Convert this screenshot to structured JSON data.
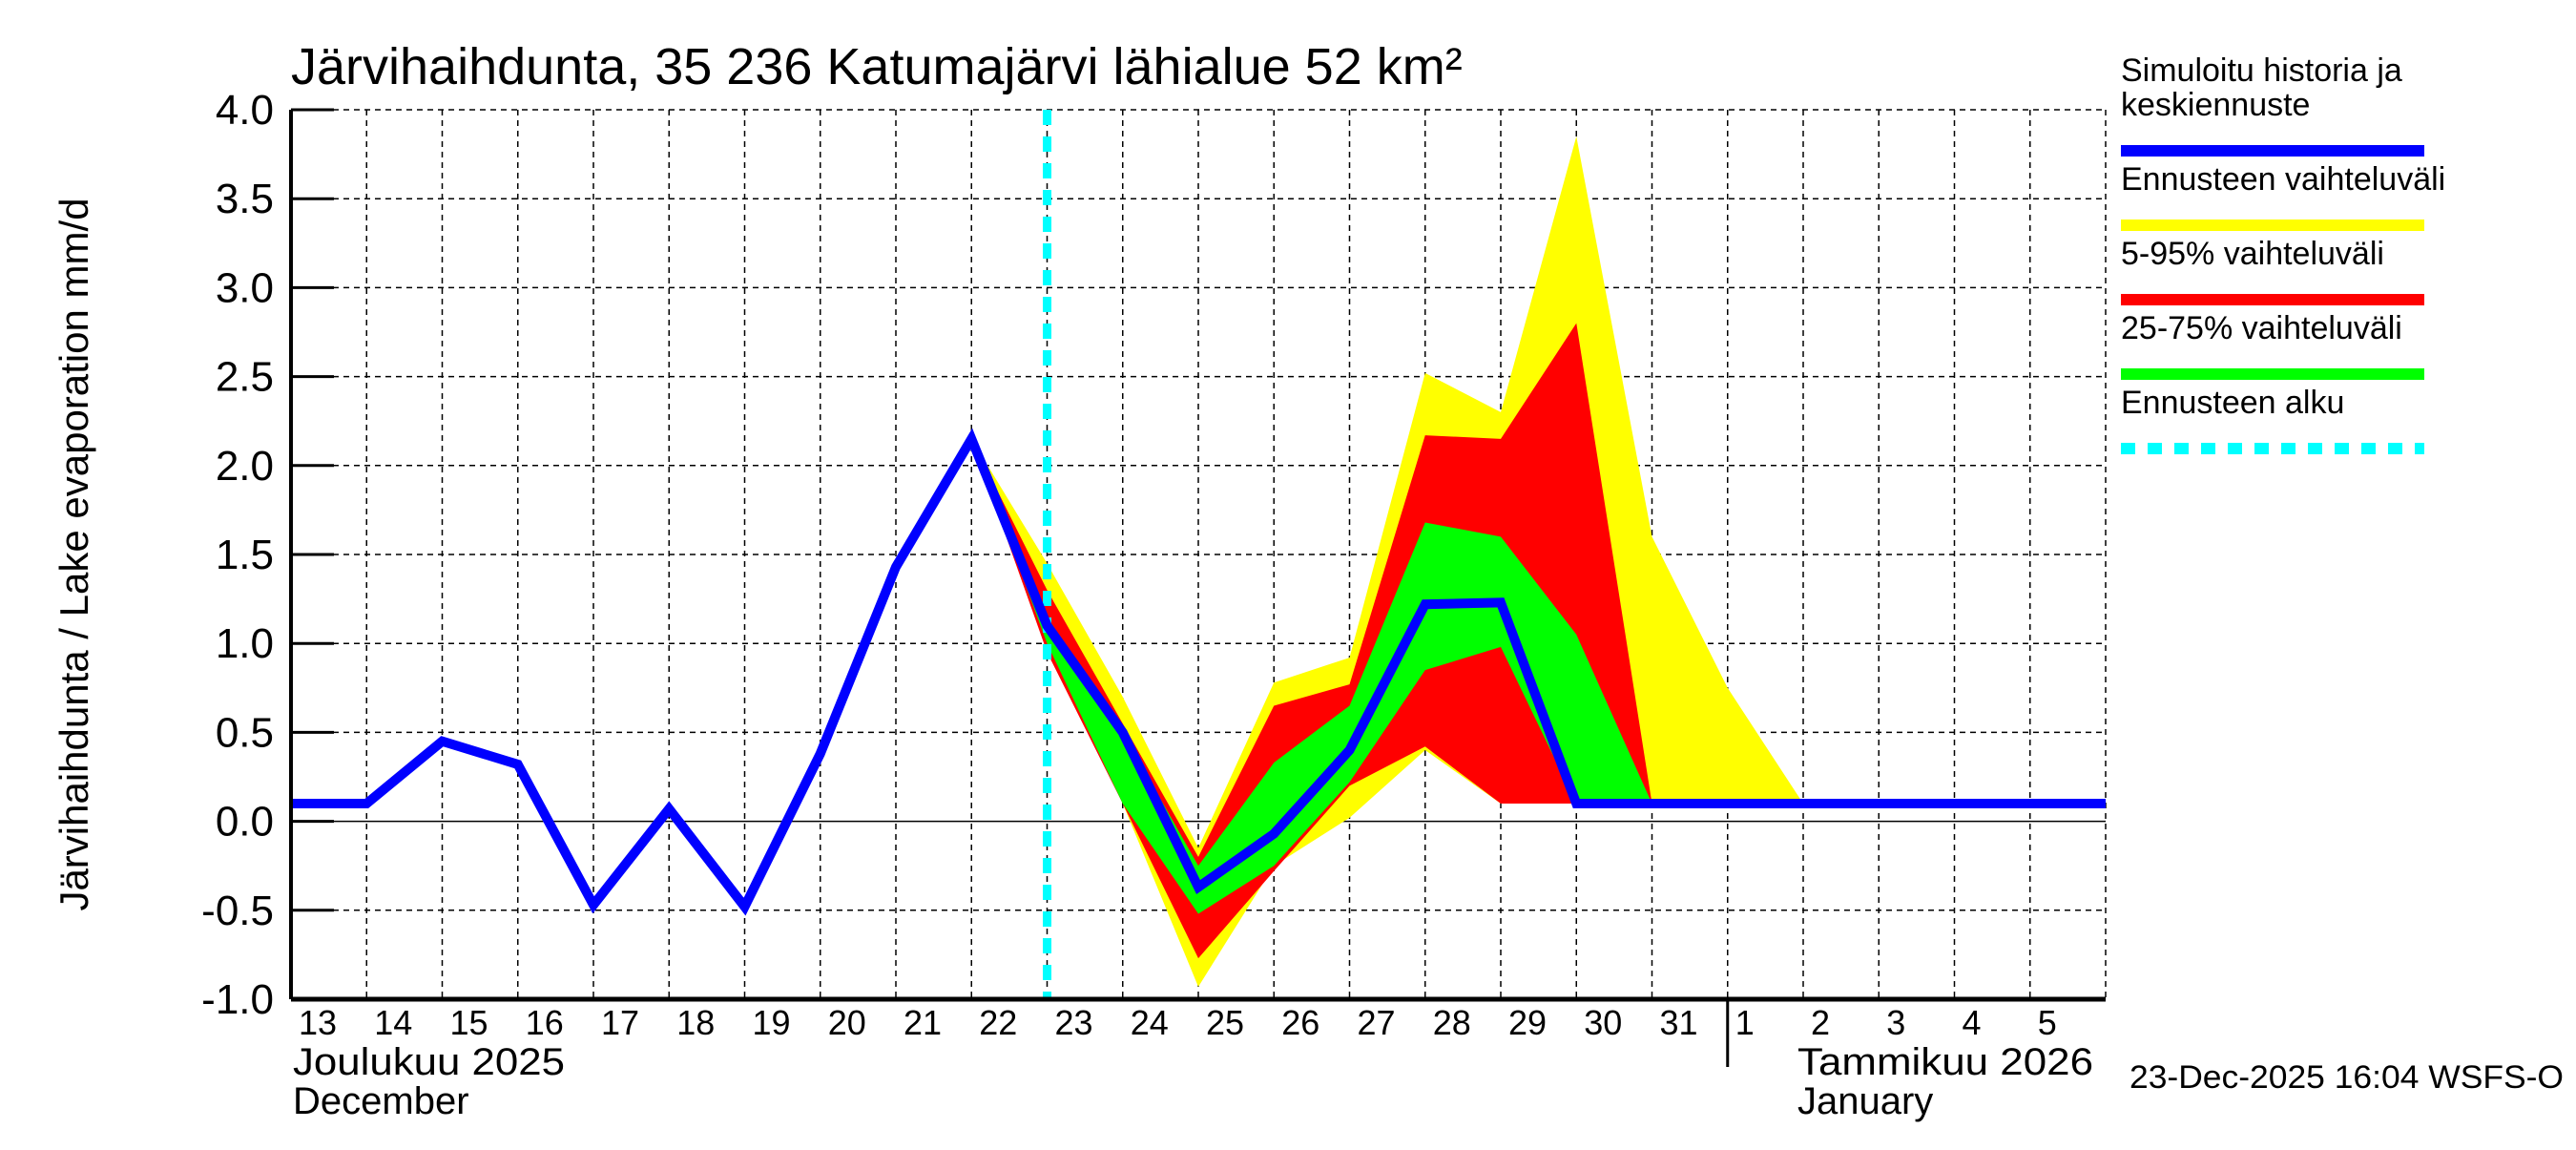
{
  "chart_data": {
    "type": "area",
    "title": "Järvihaihdunta, 35 236 Katumajärvi lähialue 52 km²",
    "ylabel": "Järvihaihdunta / Lake evaporation   mm/d",
    "ylim": [
      -1.0,
      4.0
    ],
    "yticks": [
      "-1.0",
      "-0.5",
      "0.0",
      "0.5",
      "1.0",
      "1.5",
      "2.0",
      "2.5",
      "3.0",
      "3.5",
      "4.0"
    ],
    "grid": true,
    "legend_position": "right",
    "x_dates": [
      "2025-12-13",
      "2025-12-14",
      "2025-12-15",
      "2025-12-16",
      "2025-12-17",
      "2025-12-18",
      "2025-12-19",
      "2025-12-20",
      "2025-12-21",
      "2025-12-22",
      "2025-12-23",
      "2025-12-24",
      "2025-12-25",
      "2025-12-26",
      "2025-12-27",
      "2025-12-28",
      "2025-12-29",
      "2025-12-30",
      "2025-12-31",
      "2026-01-01",
      "2026-01-02",
      "2026-01-03",
      "2026-01-04",
      "2026-01-05",
      "2026-01-06"
    ],
    "xtick_labels": [
      "13",
      "14",
      "15",
      "16",
      "17",
      "18",
      "19",
      "20",
      "21",
      "22",
      "23",
      "24",
      "25",
      "26",
      "27",
      "28",
      "29",
      "30",
      "31",
      "1",
      "2",
      "3",
      "4",
      "5"
    ],
    "month_labels": [
      {
        "fi": "Joulukuu  2025",
        "en": "December"
      },
      {
        "fi": "Tammikuu  2026",
        "en": "January"
      }
    ],
    "forecast_start": "2025-12-23",
    "series": [
      {
        "name": "Simuloitu historia ja keskiennuste",
        "color": "#0000ff",
        "values": [
          0.1,
          0.1,
          0.45,
          0.32,
          -0.47,
          0.07,
          -0.48,
          0.38,
          1.43,
          2.15,
          1.1,
          0.5,
          -0.37,
          -0.07,
          0.4,
          1.22,
          1.23,
          0.1,
          0.1,
          0.1,
          0.1,
          0.1,
          0.1,
          0.1,
          0.1
        ]
      }
    ],
    "bands": [
      {
        "name": "Ennusteen vaihteluväli",
        "color": "#ffff00",
        "start": "2025-12-22",
        "upper": [
          2.15,
          1.45,
          0.7,
          -0.15,
          0.78,
          0.92,
          2.52,
          2.3,
          3.85,
          1.6,
          0.75,
          0.1
        ],
        "lower": [
          2.15,
          1.0,
          0.1,
          -0.93,
          -0.25,
          0.02,
          0.4,
          0.1,
          0.1,
          0.1,
          0.1,
          0.1
        ]
      },
      {
        "name": "5-95% vaihteluväli",
        "color": "#ff0000",
        "start": "2025-12-22",
        "upper": [
          2.15,
          1.3,
          0.55,
          -0.2,
          0.65,
          0.77,
          2.17,
          2.15,
          2.8,
          0.1
        ],
        "lower": [
          2.15,
          0.95,
          0.1,
          -0.77,
          -0.28,
          0.2,
          0.42,
          0.1,
          0.1,
          0.1
        ]
      },
      {
        "name": "25-75% vaihteluväli",
        "color": "#00ff00",
        "start": "2025-12-22",
        "upper": [
          2.15,
          1.15,
          0.5,
          -0.25,
          0.33,
          0.65,
          1.68,
          1.6,
          1.05,
          0.1
        ],
        "lower": [
          2.15,
          1.0,
          0.1,
          -0.52,
          -0.25,
          0.22,
          0.85,
          0.98,
          0.1,
          0.1
        ]
      }
    ],
    "forecast_line": {
      "name": "Ennusteen alku",
      "color": "#00ffff"
    }
  },
  "legend": [
    {
      "label_lines": [
        "Simuloitu historia ja",
        "keskiennuste"
      ],
      "color": "#0000ff",
      "style": "solid"
    },
    {
      "label_lines": [
        "Ennusteen vaihteluväli"
      ],
      "color": "#ffff00",
      "style": "solid"
    },
    {
      "label_lines": [
        "5-95% vaihteluväli"
      ],
      "color": "#ff0000",
      "style": "solid"
    },
    {
      "label_lines": [
        "25-75% vaihteluväli"
      ],
      "color": "#00ff00",
      "style": "solid"
    },
    {
      "label_lines": [
        "Ennusteen alku"
      ],
      "color": "#00ffff",
      "style": "dashed"
    }
  ],
  "footer": "23-Dec-2025 16:04 WSFS-O"
}
